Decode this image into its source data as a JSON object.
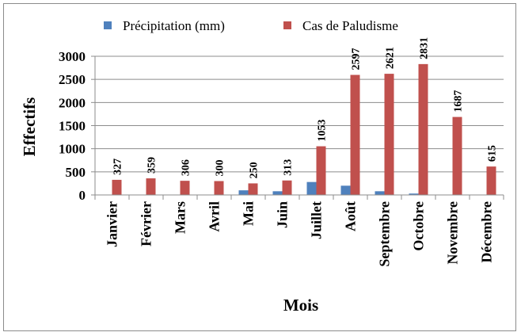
{
  "chart_data": {
    "type": "bar",
    "categories": [
      "Janvier",
      "Février",
      "Mars",
      "Avril",
      "Mai",
      "Juin",
      "Juillet",
      "Août",
      "Septembre",
      "Octobre",
      "Novembre",
      "Décembre"
    ],
    "series": [
      {
        "name": "Précipitation (mm)",
        "color": "#4f81bd",
        "values": [
          0,
          0,
          0,
          0,
          100,
          80,
          280,
          200,
          80,
          30,
          0,
          0
        ],
        "labels": []
      },
      {
        "name": "Cas de Paludisme",
        "color": "#c0504d",
        "values": [
          327,
          359,
          306,
          300,
          250,
          313,
          1053,
          2597,
          2621,
          2831,
          1687,
          615
        ],
        "labels": [
          "327",
          "359",
          "306",
          "300",
          "250",
          "313",
          "1053",
          "2597",
          "2621",
          "2831",
          "1687",
          "615"
        ]
      }
    ],
    "xlabel": "Mois",
    "ylabel": "Effectifs",
    "ylim": [
      0,
      3000
    ],
    "yticks": [
      0,
      500,
      1000,
      1500,
      2000,
      2500,
      3000
    ],
    "ytick_labels": [
      "0",
      "500",
      "1000",
      "1500",
      "2000",
      "2500",
      "3000"
    ],
    "grid": true,
    "legend_position": "top"
  }
}
